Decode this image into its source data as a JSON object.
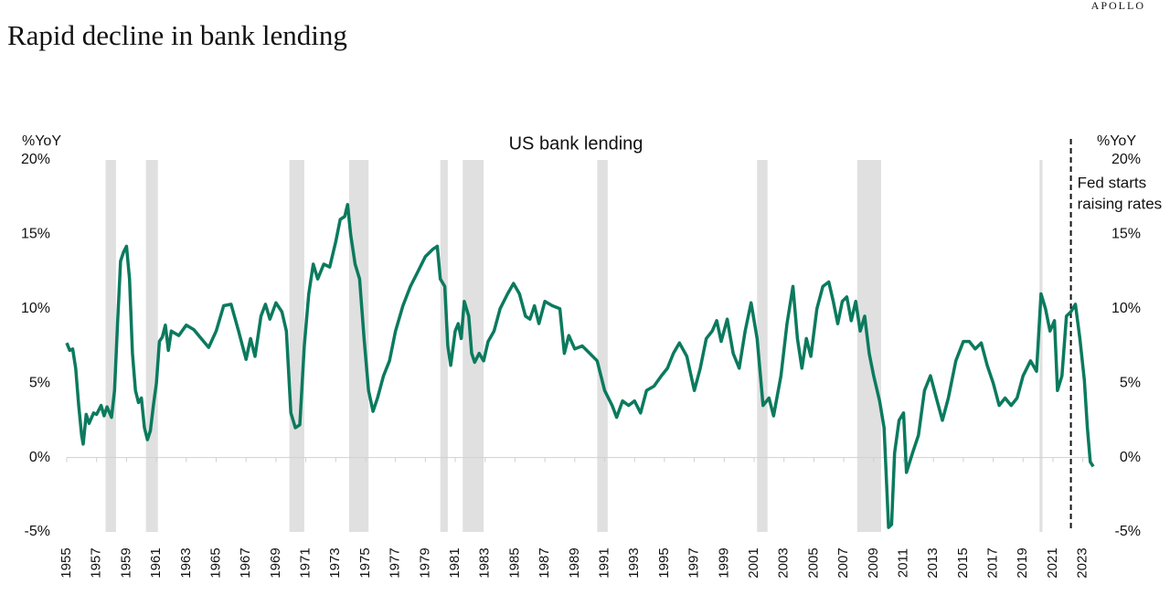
{
  "brand": "APOLLO",
  "chart_data": {
    "type": "line",
    "title": "Rapid decline in bank lending",
    "subtitle": "US bank lending",
    "ylabel": "%YoY",
    "y2label": "%YoY",
    "xlim": [
      1955,
      2024
    ],
    "xticks": [
      1955,
      1957,
      1959,
      1961,
      1963,
      1965,
      1967,
      1969,
      1971,
      1973,
      1975,
      1977,
      1979,
      1981,
      1983,
      1985,
      1987,
      1989,
      1991,
      1993,
      1995,
      1997,
      1999,
      2001,
      2003,
      2005,
      2007,
      2009,
      2011,
      2013,
      2015,
      2017,
      2019,
      2021,
      2023
    ],
    "ylim": [
      -5,
      20
    ],
    "yticks": [
      {
        "value": -5,
        "label": "-5%"
      },
      {
        "value": 0,
        "label": "0%"
      },
      {
        "value": 5,
        "label": "5%"
      },
      {
        "value": 10,
        "label": "10%"
      },
      {
        "value": 15,
        "label": "15%"
      },
      {
        "value": 20,
        "label": "20%"
      }
    ],
    "y2lim": [
      -5,
      20
    ],
    "y2ticks": [
      {
        "value": -5,
        "label": "-5%"
      },
      {
        "value": 0,
        "label": "0%"
      },
      {
        "value": 5,
        "label": "5%"
      },
      {
        "value": 10,
        "label": "10%"
      },
      {
        "value": 15,
        "label": "15%"
      },
      {
        "value": 20,
        "label": "20%"
      }
    ],
    "recessions": [
      [
        1957.6,
        1958.3
      ],
      [
        1960.3,
        1961.1
      ],
      [
        1969.9,
        1970.9
      ],
      [
        1973.9,
        1975.2
      ],
      [
        1980.0,
        1980.5
      ],
      [
        1981.5,
        1982.9
      ],
      [
        1990.5,
        1991.2
      ],
      [
        2001.2,
        2001.9
      ],
      [
        2007.9,
        2009.5
      ],
      [
        2020.1,
        2020.3
      ]
    ],
    "recession_color": "#e0e0e0",
    "annotation": {
      "x": 2022.2,
      "lines": [
        "Fed starts",
        "raising rates"
      ]
    },
    "series": [
      {
        "color": "#0b7a5e",
        "x": [
          1955.0,
          1955.2,
          1955.4,
          1955.6,
          1955.8,
          1956.0,
          1956.1,
          1956.3,
          1956.5,
          1956.8,
          1957.0,
          1957.3,
          1957.5,
          1957.7,
          1958.0,
          1958.2,
          1958.4,
          1958.6,
          1958.8,
          1959.0,
          1959.2,
          1959.4,
          1959.6,
          1959.8,
          1960.0,
          1960.2,
          1960.4,
          1960.6,
          1960.8,
          1961.0,
          1961.2,
          1961.4,
          1961.6,
          1961.8,
          1962.0,
          1962.5,
          1963.0,
          1963.5,
          1964.0,
          1964.5,
          1965.0,
          1965.5,
          1966.0,
          1966.5,
          1967.0,
          1967.3,
          1967.6,
          1968.0,
          1968.3,
          1968.6,
          1969.0,
          1969.4,
          1969.7,
          1970.0,
          1970.3,
          1970.6,
          1970.9,
          1971.2,
          1971.5,
          1971.8,
          1972.2,
          1972.6,
          1973.0,
          1973.3,
          1973.6,
          1973.8,
          1974.0,
          1974.3,
          1974.6,
          1974.9,
          1975.2,
          1975.5,
          1975.8,
          1976.2,
          1976.6,
          1977.0,
          1977.5,
          1978.0,
          1978.5,
          1979.0,
          1979.5,
          1979.8,
          1980.0,
          1980.3,
          1980.5,
          1980.7,
          1981.0,
          1981.2,
          1981.4,
          1981.6,
          1981.9,
          1982.1,
          1982.3,
          1982.6,
          1982.9,
          1983.2,
          1983.6,
          1984.0,
          1984.5,
          1984.9,
          1985.3,
          1985.7,
          1986.0,
          1986.3,
          1986.6,
          1987.0,
          1987.5,
          1988.0,
          1988.3,
          1988.6,
          1989.0,
          1989.5,
          1990.0,
          1990.5,
          1991.0,
          1991.5,
          1991.8,
          1992.2,
          1992.6,
          1993.0,
          1993.4,
          1993.8,
          1994.3,
          1994.8,
          1995.2,
          1995.6,
          1996.0,
          1996.5,
          1997.0,
          1997.4,
          1997.8,
          1998.2,
          1998.5,
          1998.8,
          1999.2,
          1999.6,
          2000.0,
          2000.4,
          2000.8,
          2001.2,
          2001.6,
          2002.0,
          2002.3,
          2002.8,
          2003.2,
          2003.6,
          2003.9,
          2004.2,
          2004.5,
          2004.8,
          2005.2,
          2005.6,
          2006.0,
          2006.3,
          2006.6,
          2006.9,
          2007.2,
          2007.5,
          2007.8,
          2008.1,
          2008.4,
          2008.7,
          2009.0,
          2009.4,
          2009.7,
          2010.0,
          2010.2,
          2010.4,
          2010.7,
          2011.0,
          2011.2,
          2011.6,
          2012.0,
          2012.4,
          2012.8,
          2013.2,
          2013.6,
          2014.0,
          2014.5,
          2015.0,
          2015.4,
          2015.8,
          2016.2,
          2016.6,
          2017.0,
          2017.4,
          2017.8,
          2018.2,
          2018.6,
          2019.0,
          2019.5,
          2019.9,
          2020.2,
          2020.5,
          2020.8,
          2021.1,
          2021.3,
          2021.6,
          2021.9,
          2022.2,
          2022.5,
          2022.8,
          2023.1,
          2023.3,
          2023.5,
          2023.7
        ],
        "values": [
          7.7,
          7.2,
          7.3,
          6.0,
          3.5,
          1.5,
          0.9,
          2.9,
          2.3,
          3.0,
          2.9,
          3.5,
          2.8,
          3.4,
          2.7,
          4.5,
          9.0,
          13.2,
          13.8,
          14.2,
          12.0,
          7.0,
          4.5,
          3.7,
          4.0,
          2.0,
          1.2,
          1.8,
          3.5,
          5.0,
          7.8,
          8.1,
          8.9,
          7.2,
          8.5,
          8.2,
          8.9,
          8.6,
          8.0,
          7.4,
          8.5,
          10.2,
          10.3,
          8.5,
          6.6,
          8.0,
          6.8,
          9.5,
          10.3,
          9.3,
          10.4,
          9.8,
          8.5,
          3.0,
          2.0,
          2.2,
          7.5,
          11.0,
          13.0,
          12.0,
          13.0,
          12.8,
          14.5,
          16.0,
          16.2,
          17.0,
          15.0,
          13.0,
          12.0,
          8.0,
          4.5,
          3.1,
          4.0,
          5.5,
          6.5,
          8.5,
          10.2,
          11.5,
          12.5,
          13.5,
          14.0,
          14.2,
          12.0,
          11.5,
          7.5,
          6.2,
          8.5,
          9.0,
          8.0,
          10.5,
          9.5,
          7.0,
          6.4,
          7.0,
          6.5,
          7.8,
          8.5,
          10.0,
          11.0,
          11.7,
          11.0,
          9.5,
          9.3,
          10.2,
          9.0,
          10.5,
          10.2,
          10.0,
          7.0,
          8.2,
          7.3,
          7.5,
          7.0,
          6.5,
          4.5,
          3.5,
          2.7,
          3.8,
          3.5,
          3.8,
          3.0,
          4.5,
          4.8,
          5.5,
          6.0,
          7.0,
          7.7,
          6.8,
          4.5,
          6.0,
          8.0,
          8.5,
          9.2,
          7.8,
          9.3,
          7.0,
          6.0,
          8.5,
          10.4,
          8.0,
          3.5,
          4.0,
          2.8,
          5.5,
          9.0,
          11.5,
          8.0,
          6.0,
          8.0,
          6.8,
          10.0,
          11.5,
          11.8,
          10.5,
          9.0,
          10.5,
          10.8,
          9.2,
          10.5,
          8.5,
          9.5,
          7.0,
          5.5,
          3.8,
          2.0,
          -4.7,
          -4.5,
          0.3,
          2.5,
          3.0,
          -1.0,
          0.3,
          1.5,
          4.5,
          5.5,
          4.0,
          2.5,
          4.0,
          6.5,
          7.8,
          7.8,
          7.3,
          7.7,
          6.2,
          5.0,
          3.5,
          4.0,
          3.5,
          4.0,
          5.5,
          6.5,
          5.8,
          11.0,
          10.0,
          8.5,
          9.2,
          4.5,
          5.5,
          9.5,
          9.8,
          10.3,
          8.0,
          5.2,
          2.0,
          -0.3,
          -0.6
        ]
      }
    ]
  }
}
